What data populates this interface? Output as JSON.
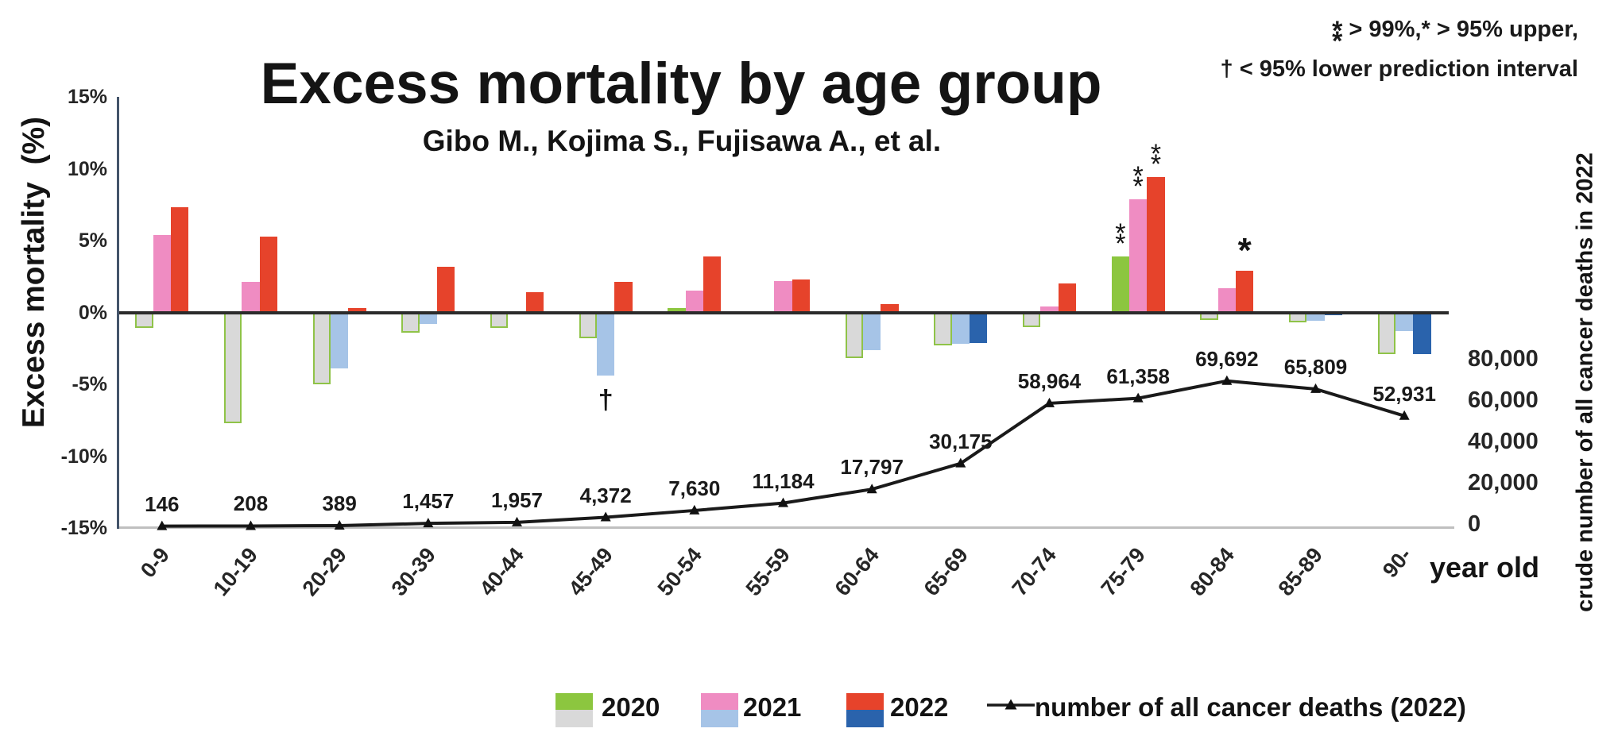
{
  "title": "Excess mortality by age group",
  "subtitle": "Gibo M., Kojima S., Fujisawa A., et al.",
  "note": {
    "double_asterisk": "**",
    "line1_after_double": " > 99%,",
    "line1_star": "*",
    "line1_rest": " > 95% upper,",
    "line2": "† < 95% lower prediction interval"
  },
  "chart_data": {
    "type": "bar+line",
    "title": "Excess mortality by age group",
    "subtitle": "Gibo M., Kojima S., Fujisawa A., et al.",
    "categories": [
      "0-9",
      "10-19",
      "20-29",
      "30-39",
      "40-44",
      "45-49",
      "50-54",
      "55-59",
      "60-64",
      "65-69",
      "70-74",
      "75-79",
      "80-84",
      "85-89",
      "90-"
    ],
    "x_axis_suffix": "year old",
    "series": [
      {
        "name": "2020",
        "values": [
          -1.1,
          -7.7,
          -5.0,
          -1.4,
          -1.1,
          -1.8,
          0.3,
          0,
          -3.2,
          -2.3,
          -1.0,
          3.9,
          -0.5,
          -0.7,
          -2.9
        ],
        "positive_color": "#8cc63f",
        "negative_fill": "#d9d9d9",
        "negative_border": "#8fc348"
      },
      {
        "name": "2021",
        "values": [
          5.4,
          2.1,
          -3.9,
          -0.8,
          0,
          -4.4,
          1.5,
          2.2,
          -2.6,
          -2.2,
          0.4,
          7.9,
          1.7,
          -0.6,
          -1.3
        ],
        "positive_color": "#ef8cc2",
        "negative_fill": "#a6c4e7",
        "negative_border": ""
      },
      {
        "name": "2022",
        "values": [
          7.3,
          5.3,
          0.3,
          3.2,
          1.4,
          2.1,
          3.9,
          2.3,
          0.6,
          -2.1,
          2.0,
          9.4,
          2.9,
          -0.2,
          -2.9
        ],
        "positive_color": "#e6432b",
        "negative_fill": "#2a63ac",
        "negative_border": ""
      }
    ],
    "line_series": {
      "name": "number of all cancer deaths (2022)",
      "values": [
        146,
        208,
        389,
        1457,
        1957,
        4372,
        7630,
        11184,
        17797,
        30175,
        58964,
        61358,
        69692,
        65809,
        52931
      ],
      "labels": [
        "146",
        "208",
        "389",
        "1,457",
        "1,957",
        "4,372",
        "7,630",
        "11,184",
        "17,797",
        "30,175",
        "58,964",
        "61,358",
        "69,692",
        "65,809",
        "52,931"
      ],
      "color": "#1a1a1a"
    },
    "left_axis": {
      "label": "Excess mortality  (%)",
      "ticks": [
        "15%",
        "10%",
        "5%",
        "0%",
        "-5%",
        "-10%",
        "-15%"
      ],
      "tick_values": [
        15,
        10,
        5,
        0,
        -5,
        -10,
        -15
      ],
      "min": -15,
      "max": 15
    },
    "right_axis": {
      "label": "crude number of all cancer deaths in 2022",
      "ticks": [
        "80,000",
        "60,000",
        "40,000",
        "20,000",
        "0"
      ],
      "tick_values": [
        80000,
        60000,
        40000,
        20000,
        0
      ],
      "min": 0,
      "max": 80000
    },
    "annotations": [
      {
        "category": "75-79",
        "series": "2020",
        "symbol": "**",
        "position": "above"
      },
      {
        "category": "75-79",
        "series": "2021",
        "symbol": "**",
        "position": "above"
      },
      {
        "category": "75-79",
        "series": "2022",
        "symbol": "**",
        "position": "above"
      },
      {
        "category": "80-84",
        "series": "2022",
        "symbol": "*",
        "position": "above"
      },
      {
        "category": "45-49",
        "series": "2021",
        "symbol": "†",
        "position": "below"
      }
    ],
    "grid": false,
    "legend_position": "bottom"
  },
  "legend": {
    "items": [
      {
        "label": "2020"
      },
      {
        "label": "2021"
      },
      {
        "label": "2022"
      }
    ],
    "line_item_label": "number of all cancer deaths (2022)"
  }
}
